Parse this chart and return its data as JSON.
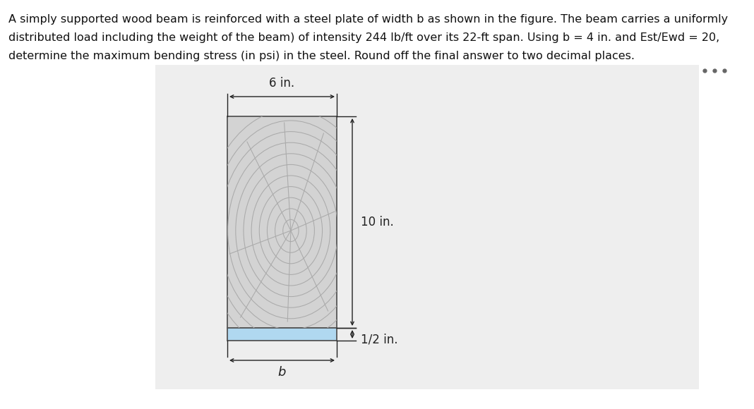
{
  "title_line1": "A simply supported wood beam is reinforced with a steel plate of width b as shown in the figure. The beam carries a uniformly",
  "title_line2": "distributed load including the weight of the beam) of intensity 244 lb/ft over its 22-ft span. Using b = 4 in. and Est/Ewd = 20,",
  "title_line3": "determine the maximum bending stress (in psi) in the steel. Round off the final answer to two decimal places.",
  "fig_background": "#ffffff",
  "panel_background": "#eeeeee",
  "wood_fill": "#d3d3d3",
  "wood_edge": "#555555",
  "grain_color": "#aaaaaa",
  "crack_color": "#aaaaaa",
  "steel_fill": "#b0d8f0",
  "steel_edge": "#555555",
  "dim_color": "#222222",
  "dots_color": "#666666",
  "label_6in": "6 in.",
  "label_10in": "10 in.",
  "label_b": "b",
  "label_half": "1/2 in.",
  "text_fontsize": 11.5,
  "dim_fontsize": 12
}
